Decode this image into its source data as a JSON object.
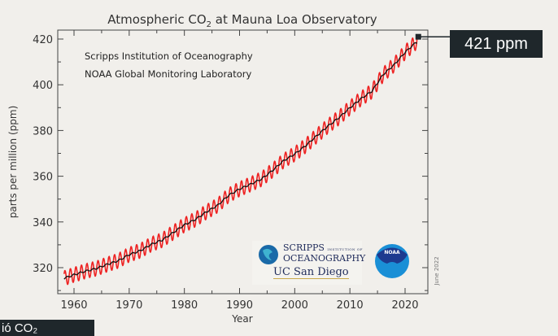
{
  "chart_data": {
    "type": "line",
    "title": "Atmospheric CO",
    "title_subscript": "2",
    "title_suffix": " at Mauna Loa Observatory",
    "xlabel": "Year",
    "ylabel": "parts per million (ppm)",
    "xlim": [
      1957.5,
      2023.5
    ],
    "ylim": [
      309,
      423
    ],
    "x_ticks": [
      1960,
      1970,
      1980,
      1990,
      2000,
      2010,
      2020
    ],
    "y_ticks": [
      320,
      340,
      360,
      380,
      400,
      420
    ],
    "credits": [
      "Scripps Institution of Oceanography",
      "NOAA Global Monitoring Laboratory"
    ],
    "date_stamp": "June 2022",
    "series": [
      {
        "name": "Annual trend (black)",
        "color": "#111111",
        "x": [
          1958,
          1960,
          1962,
          1964,
          1966,
          1968,
          1970,
          1972,
          1974,
          1976,
          1978,
          1980,
          1982,
          1984,
          1986,
          1988,
          1990,
          1992,
          1994,
          1996,
          1998,
          2000,
          2002,
          2004,
          2006,
          2008,
          2010,
          2012,
          2014,
          2016,
          2018,
          2020,
          2022
        ],
        "values": [
          315.2,
          316.9,
          318.4,
          319.6,
          321.4,
          323.0,
          325.7,
          327.4,
          330.2,
          332.1,
          335.4,
          338.7,
          341.1,
          344.4,
          347.2,
          351.6,
          354.4,
          356.5,
          358.8,
          362.6,
          366.8,
          369.7,
          373.4,
          377.7,
          381.9,
          385.6,
          389.9,
          393.9,
          397.2,
          404.4,
          408.7,
          414.2,
          418.6
        ]
      },
      {
        "name": "Monthly values (red, seasonal cycle)",
        "color": "#ee2222",
        "seasonal_amplitude_ppm": 3.2
      }
    ],
    "callout": {
      "label": "421 ppm",
      "x": 2022.4,
      "value": 421
    }
  },
  "caption_text": "ió CO₂",
  "logos": {
    "scripps_line1": "SCRIPPS",
    "scripps_small": "INSTITUTION OF",
    "scripps_line2": "OCEANOGRAPHY",
    "ucsd": "UC San Diego",
    "noaa": "NOAA"
  }
}
